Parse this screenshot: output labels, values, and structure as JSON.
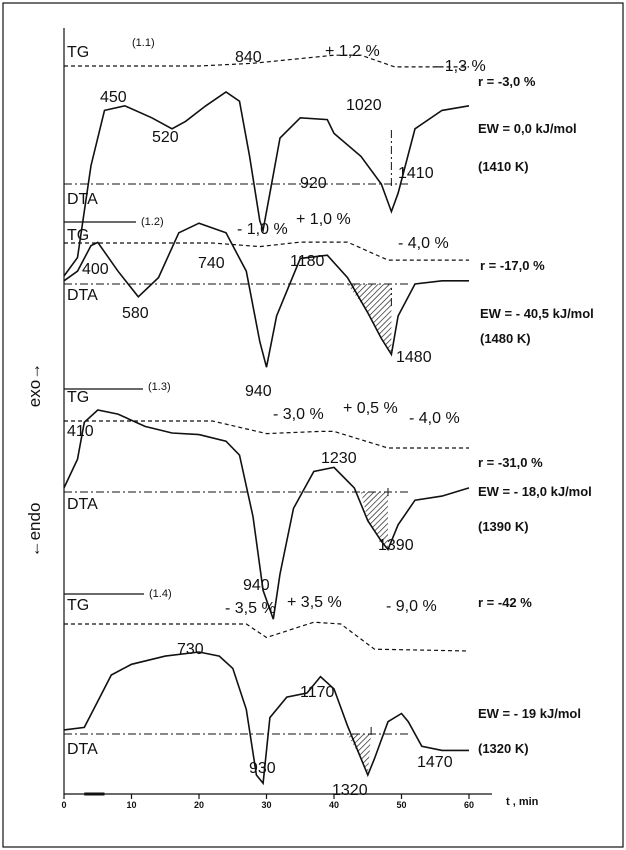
{
  "chart_data": {
    "type": "line",
    "title": "",
    "xlabel": "t , min",
    "ylabel_top": "exo→",
    "ylabel_bottom": "←endo",
    "x_ticks": [
      0,
      10,
      20,
      30,
      40,
      50,
      60
    ],
    "xlim": [
      0,
      60
    ],
    "panels": [
      {
        "id": "(1.1)",
        "tg_label": "TG",
        "dta_label": "DTA",
        "tg_annotations": [
          "+ 1,2 %",
          "- 1,3 %"
        ],
        "peaks": [
          {
            "x": 6,
            "label": "450"
          },
          {
            "x": 13,
            "label": "520"
          },
          {
            "x": 23,
            "label": "840"
          },
          {
            "x": 29.5,
            "label": "920"
          },
          {
            "x": 38,
            "label": "1020"
          },
          {
            "x": 48.5,
            "label": "1410"
          }
        ],
        "result_r": "r =  -3,0 %",
        "result_ew": "EW = 0,0  kJ/mol",
        "result_t": "(1410 K)",
        "tg_curve": [
          [
            0,
            0
          ],
          [
            20,
            0
          ],
          [
            28,
            0.3
          ],
          [
            40,
            1.2
          ],
          [
            44,
            1.2
          ],
          [
            49,
            -0.1
          ],
          [
            60,
            -0.1
          ]
        ],
        "dta_curve": [
          [
            0,
            -1
          ],
          [
            2,
            -0.8
          ],
          [
            4,
            0.2
          ],
          [
            6,
            0.8
          ],
          [
            9,
            0.85
          ],
          [
            13,
            0.72
          ],
          [
            16,
            0.6
          ],
          [
            18,
            0.68
          ],
          [
            21,
            0.85
          ],
          [
            24,
            1.0
          ],
          [
            26,
            0.9
          ],
          [
            27.5,
            0.3
          ],
          [
            29,
            -0.4
          ],
          [
            29.5,
            -0.5
          ],
          [
            30.5,
            -0.1
          ],
          [
            32,
            0.5
          ],
          [
            35,
            0.72
          ],
          [
            39,
            0.7
          ],
          [
            40,
            0.55
          ],
          [
            44,
            0.3
          ],
          [
            47,
            0
          ],
          [
            48.5,
            -0.3
          ],
          [
            49.5,
            -0.1
          ],
          [
            52,
            0.6
          ],
          [
            56,
            0.8
          ],
          [
            60,
            0.85
          ]
        ]
      },
      {
        "id": "(1.2)",
        "tg_label": "TG",
        "dta_label": "DTA",
        "tg_annotations": [
          "- 1,0 %",
          "+ 1,0 %",
          "- 4,0 %"
        ],
        "peaks": [
          {
            "x": 5,
            "label": "400"
          },
          {
            "x": 11,
            "label": "580"
          },
          {
            "x": 20,
            "label": "740"
          },
          {
            "x": 30,
            "label": "940"
          },
          {
            "x": 39,
            "label": "1180"
          },
          {
            "x": 48.5,
            "label": "1480"
          }
        ],
        "result_r": "r = -17,0 %",
        "result_ew": "EW = - 40,5 kJ/mol",
        "result_t": "(1480 K)",
        "tg_curve": [
          [
            0,
            0
          ],
          [
            22,
            0
          ],
          [
            29,
            -0.8
          ],
          [
            35,
            0.2
          ],
          [
            42,
            0.2
          ],
          [
            48,
            -3.8
          ],
          [
            60,
            -3.8
          ]
        ],
        "dta_curve": [
          [
            0,
            0.05
          ],
          [
            2,
            0.2
          ],
          [
            4,
            0.6
          ],
          [
            5,
            0.65
          ],
          [
            8,
            0.2
          ],
          [
            11,
            -0.2
          ],
          [
            14,
            0.1
          ],
          [
            17,
            0.8
          ],
          [
            20,
            0.95
          ],
          [
            24,
            0.8
          ],
          [
            27,
            0.2
          ],
          [
            29,
            -0.9
          ],
          [
            30,
            -1.3
          ],
          [
            31.5,
            -0.5
          ],
          [
            35,
            0.4
          ],
          [
            39,
            0.45
          ],
          [
            42,
            0.1
          ],
          [
            45,
            -0.45
          ],
          [
            47,
            -0.85
          ],
          [
            48.5,
            -1.1
          ],
          [
            49.5,
            -0.5
          ],
          [
            52,
            0
          ],
          [
            56,
            0.05
          ],
          [
            60,
            0.05
          ]
        ]
      },
      {
        "id": "(1.3)",
        "tg_label": "TG",
        "dta_label": "DTA",
        "tg_annotations": [
          "- 3,0 %",
          "+ 0,5 %",
          "- 4,0 %"
        ],
        "peaks": [
          {
            "x": 5,
            "label": "410"
          },
          {
            "x": 30,
            "label": "940"
          },
          {
            "x": 38,
            "label": "1230"
          },
          {
            "x": 48,
            "label": "1390"
          }
        ],
        "result_r": "r = -31,0 %",
        "result_ew": "EW = - 18,0 kJ/mol",
        "result_t": "(1390 K)",
        "tg_curve": [
          [
            0,
            0
          ],
          [
            22,
            0
          ],
          [
            30,
            -2.8
          ],
          [
            38,
            -2.3
          ],
          [
            40,
            -2.3
          ],
          [
            48,
            -6.0
          ],
          [
            60,
            -6.0
          ]
        ],
        "dta_curve": [
          [
            0,
            0.05
          ],
          [
            2,
            0.4
          ],
          [
            3,
            0.85
          ],
          [
            5,
            1.0
          ],
          [
            8,
            0.95
          ],
          [
            12,
            0.8
          ],
          [
            16,
            0.72
          ],
          [
            20,
            0.7
          ],
          [
            24,
            0.62
          ],
          [
            26,
            0.45
          ],
          [
            28,
            -0.3
          ],
          [
            29.5,
            -1.2
          ],
          [
            31,
            -1.55
          ],
          [
            32,
            -1.0
          ],
          [
            34,
            -0.2
          ],
          [
            37,
            0.25
          ],
          [
            40,
            0.3
          ],
          [
            43,
            0.05
          ],
          [
            45,
            -0.35
          ],
          [
            47,
            -0.6
          ],
          [
            48,
            -0.7
          ],
          [
            49.5,
            -0.4
          ],
          [
            52,
            -0.1
          ],
          [
            56,
            -0.05
          ],
          [
            60,
            0.05
          ]
        ]
      },
      {
        "id": "(1.4)",
        "tg_label": "TG",
        "dta_label": "DTA",
        "tg_annotations": [
          "- 3,5 %",
          "+ 3,5 %",
          "- 9,0 %"
        ],
        "peaks": [
          {
            "x": 20,
            "label": "730"
          },
          {
            "x": 29.5,
            "label": "930"
          },
          {
            "x": 38,
            "label": "1170"
          },
          {
            "x": 45,
            "label": "1320"
          },
          {
            "x": 50,
            "label": "1470"
          }
        ],
        "result_r": "r = -42 %",
        "result_ew": "EW = - 19 kJ/mol",
        "result_t": "(1320 K)",
        "tg_curve": [
          [
            0,
            0
          ],
          [
            27,
            0
          ],
          [
            30,
            -1.5
          ],
          [
            37,
            0.2
          ],
          [
            41,
            0
          ],
          [
            46,
            -2.8
          ],
          [
            60,
            -3.0
          ]
        ],
        "dta_curve": [
          [
            0,
            0.05
          ],
          [
            3,
            0.08
          ],
          [
            5,
            0.4
          ],
          [
            7,
            0.72
          ],
          [
            10,
            0.85
          ],
          [
            15,
            0.95
          ],
          [
            20,
            1.0
          ],
          [
            23,
            0.95
          ],
          [
            25,
            0.8
          ],
          [
            27,
            0.3
          ],
          [
            28.5,
            -0.5
          ],
          [
            29.5,
            -0.6
          ],
          [
            30.5,
            0.2
          ],
          [
            33,
            0.45
          ],
          [
            36,
            0.5
          ],
          [
            38,
            0.7
          ],
          [
            40,
            0.55
          ],
          [
            42,
            0.1
          ],
          [
            44,
            -0.3
          ],
          [
            45,
            -0.5
          ],
          [
            46,
            -0.3
          ],
          [
            48,
            0.15
          ],
          [
            50,
            0.25
          ],
          [
            51,
            0.15
          ],
          [
            53,
            -0.15
          ],
          [
            56,
            -0.2
          ],
          [
            60,
            -0.2
          ]
        ]
      }
    ]
  }
}
